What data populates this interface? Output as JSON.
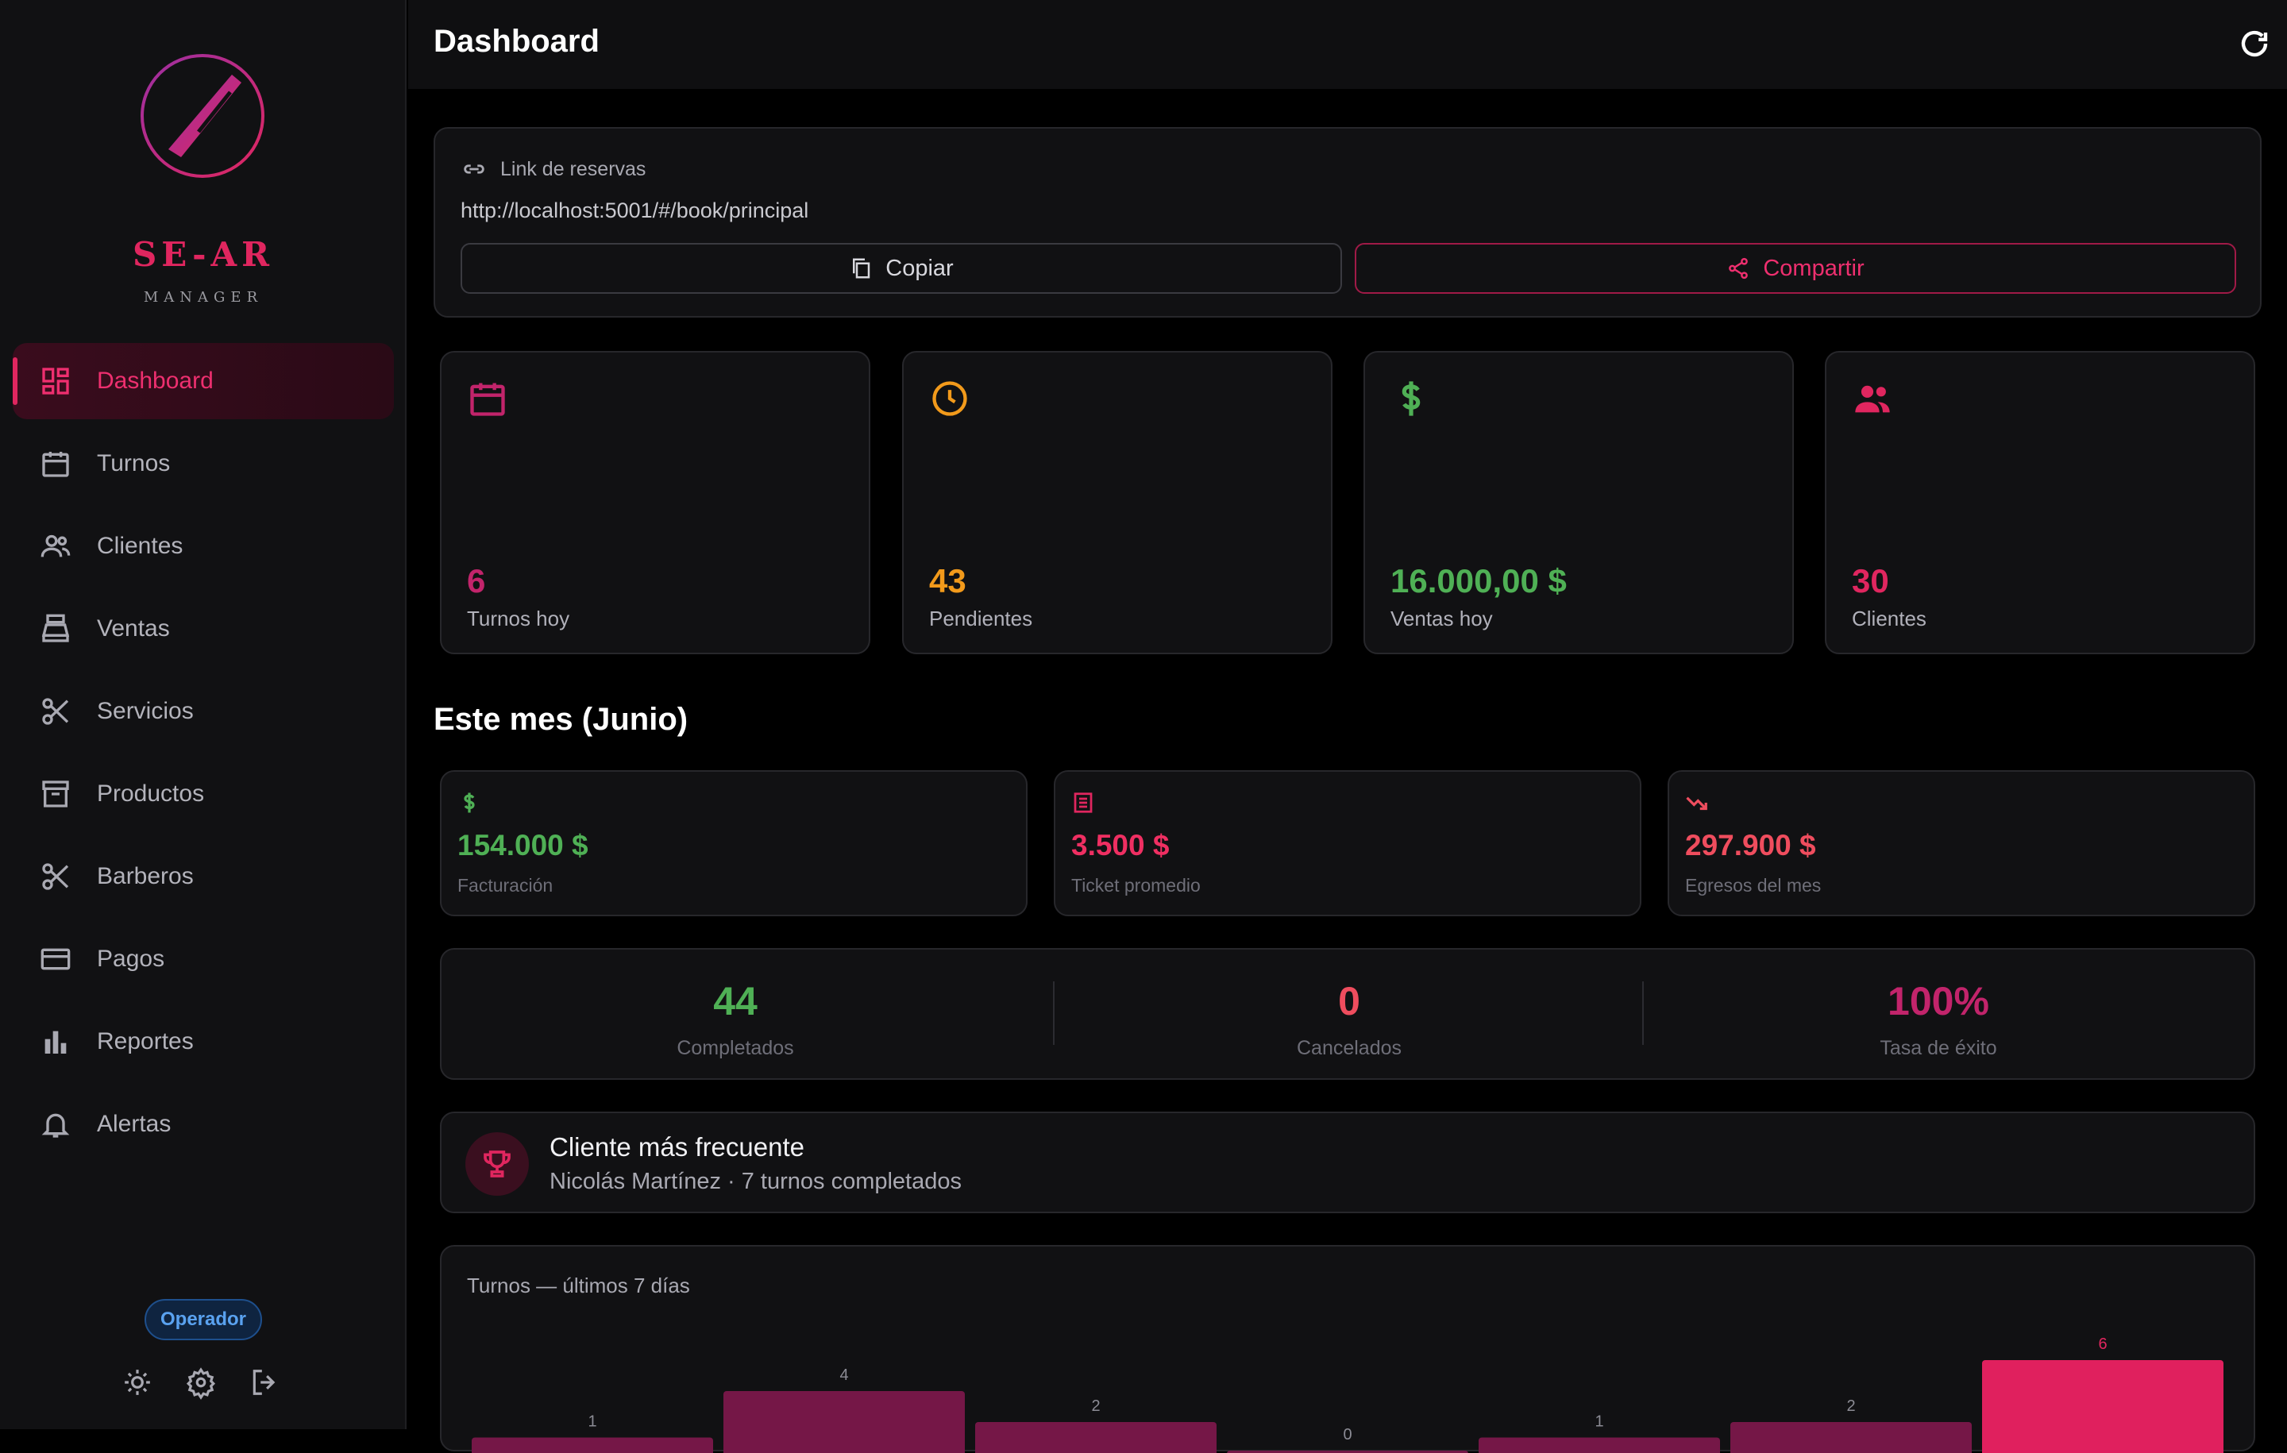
{
  "colors": {
    "accent": "#e0265f",
    "magenta": "#c2246b",
    "orange": "#f29a1b",
    "green": "#4fb055",
    "red": "#ef4d5e",
    "barDark": "#751747",
    "barHighlight": "#e0205e"
  },
  "brand": {
    "title": "SE-AR",
    "subtitle": "MANAGER"
  },
  "sidebar": {
    "items": [
      {
        "label": "Dashboard",
        "icon": "dashboard-icon",
        "active": true
      },
      {
        "label": "Turnos",
        "icon": "calendar-icon"
      },
      {
        "label": "Clientes",
        "icon": "people-icon"
      },
      {
        "label": "Ventas",
        "icon": "point-of-sale-icon"
      },
      {
        "label": "Servicios",
        "icon": "scissors-icon"
      },
      {
        "label": "Productos",
        "icon": "archive-box-icon"
      },
      {
        "label": "Barberos",
        "icon": "scissors-icon"
      },
      {
        "label": "Pagos",
        "icon": "credit-card-icon"
      },
      {
        "label": "Reportes",
        "icon": "bar-chart-icon"
      },
      {
        "label": "Alertas",
        "icon": "bell-icon"
      }
    ],
    "role": "Operador"
  },
  "header": {
    "title": "Dashboard"
  },
  "booking": {
    "label": "Link de reservas",
    "url": "http://localhost:5001/#/book/principal",
    "copy_label": "Copiar",
    "share_label": "Compartir"
  },
  "stats": [
    {
      "value": "6",
      "label": "Turnos hoy",
      "icon": "calendar-icon"
    },
    {
      "value": "43",
      "label": "Pendientes",
      "icon": "clock-icon"
    },
    {
      "value": "16.000,00 $",
      "label": "Ventas hoy",
      "icon": "dollar-icon"
    },
    {
      "value": "30",
      "label": "Clientes",
      "icon": "people-icon"
    }
  ],
  "month": {
    "title": "Este mes (Junio)",
    "cards": [
      {
        "value": "154.000 $",
        "label": "Facturación",
        "icon": "dollar-icon"
      },
      {
        "value": "3.500 $",
        "label": "Ticket promedio",
        "icon": "receipt-icon"
      },
      {
        "value": "297.900 $",
        "label": "Egresos del mes",
        "icon": "trending-down-icon"
      }
    ],
    "kpis": [
      {
        "value": "44",
        "label": "Completados"
      },
      {
        "value": "0",
        "label": "Cancelados"
      },
      {
        "value": "100%",
        "label": "Tasa de éxito"
      }
    ]
  },
  "frequent_client": {
    "title": "Cliente más frecuente",
    "detail": "Nicolás Martínez · 7 turnos completados"
  },
  "chart_data": {
    "type": "bar",
    "title": "Turnos — últimos 7 días",
    "values": [
      1,
      4,
      2,
      0,
      1,
      2,
      6
    ],
    "highlight_index": 6
  }
}
